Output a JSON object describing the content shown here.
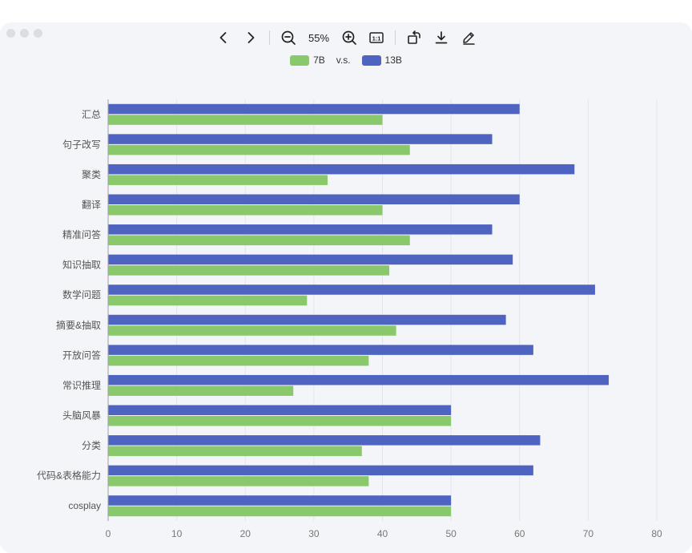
{
  "toolbar": {
    "zoom_label": "55%",
    "actual_size_label": "1:1"
  },
  "legend": {
    "separator": "v.s."
  },
  "colors": {
    "7B": "#8ac96b",
    "13B": "#4f63c0",
    "grid": "#e3e5ea",
    "axis": "#9aa0aa"
  },
  "chart_data": {
    "type": "bar",
    "orientation": "horizontal",
    "categories": [
      "汇总",
      "句子改写",
      "聚类",
      "翻译",
      "精准问答",
      "知识抽取",
      "数学问题",
      "摘要&抽取",
      "开放问答",
      "常识推理",
      "头脑风暴",
      "分类",
      "代码&表格能力",
      "cosplay"
    ],
    "series": [
      {
        "name": "13B",
        "values": [
          60,
          56,
          68,
          60,
          56,
          59,
          71,
          58,
          62,
          73,
          50,
          63,
          62,
          50
        ]
      },
      {
        "name": "7B",
        "values": [
          40,
          44,
          32,
          40,
          44,
          41,
          29,
          42,
          38,
          27,
          50,
          37,
          38,
          50
        ]
      }
    ],
    "xlim": [
      0,
      80
    ],
    "xticks": [
      0,
      10,
      20,
      30,
      40,
      50,
      60,
      70,
      80
    ],
    "grid": true,
    "legend_position": "top-center"
  }
}
